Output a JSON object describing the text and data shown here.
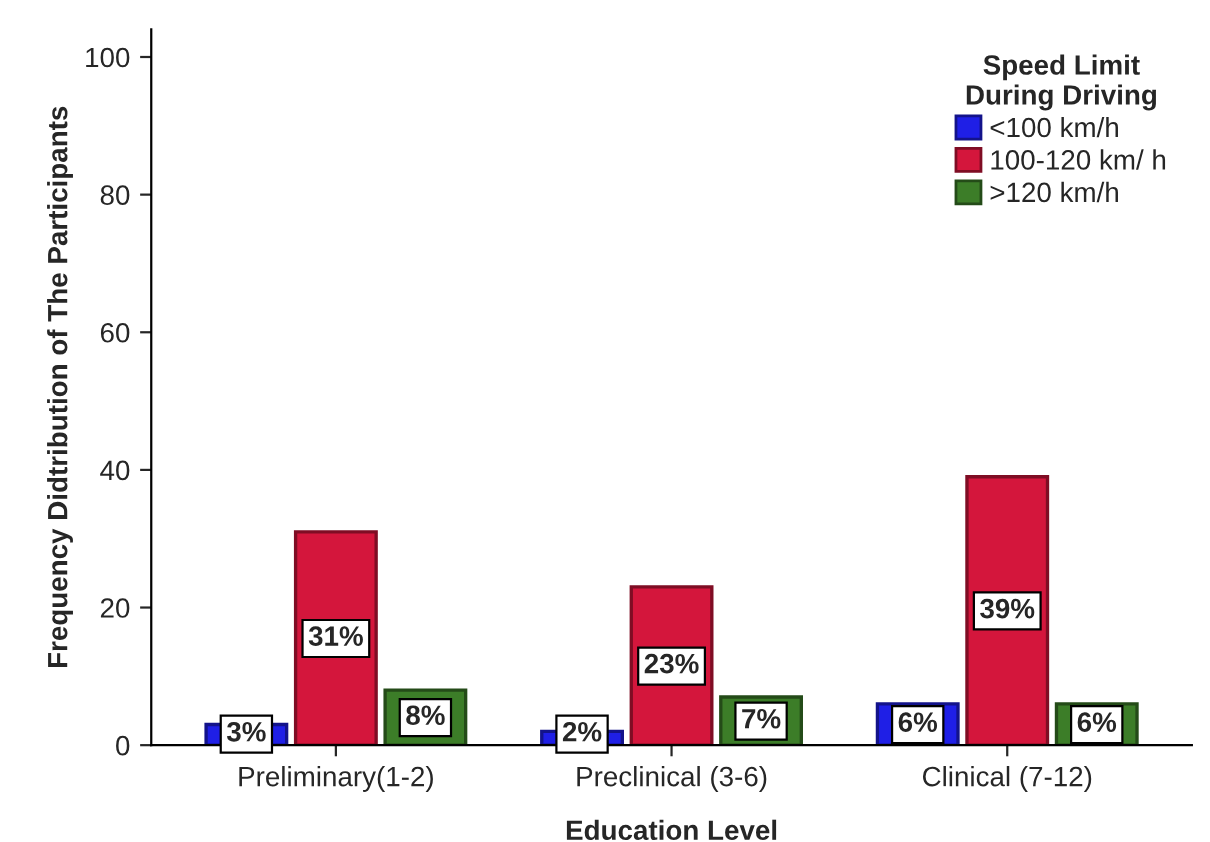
{
  "chart_data": {
    "type": "bar",
    "xlabel": "Education Level",
    "ylabel": "Frequency Didtribution of The Participants",
    "categories": [
      "Preliminary(1-2)",
      "Preclinical (3-6)",
      "Clinical (7-12)"
    ],
    "series": [
      {
        "name": "<100 km/h",
        "color": "#1f1fe6",
        "values": [
          3,
          2,
          6
        ],
        "value_labels": [
          "3%",
          "2%",
          "6%"
        ]
      },
      {
        "name": "100-120 km/ h",
        "color": "#d4163c",
        "values": [
          31,
          23,
          39
        ],
        "value_labels": [
          "31%",
          "23%",
          "39%"
        ]
      },
      {
        "name": ">120 km/h",
        "color": "#3c7d28",
        "values": [
          8,
          7,
          6
        ],
        "value_labels": [
          "8%",
          "7%",
          "6%"
        ]
      }
    ],
    "legend_title": "Speed Limit\nDuring Driving",
    "legend": "top right",
    "grid": false,
    "ylim": [
      0,
      104
    ],
    "yticks": [
      0,
      20,
      40,
      60,
      80,
      100
    ]
  }
}
